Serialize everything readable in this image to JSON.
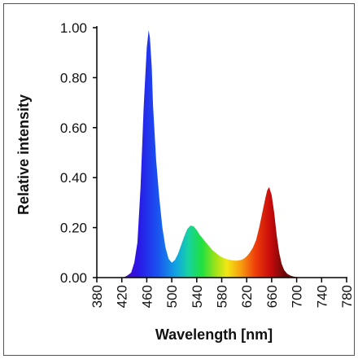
{
  "chart_data": {
    "type": "area",
    "title": "",
    "xlabel": "Wavelength [nm]",
    "ylabel": "Relative intensity",
    "xlim": [
      380,
      780
    ],
    "ylim": [
      0,
      1.0
    ],
    "x_ticks": [
      380,
      420,
      460,
      500,
      540,
      580,
      620,
      660,
      700,
      740,
      780
    ],
    "x_tick_labels": [
      "380",
      "420",
      "460",
      "500",
      "540",
      "580",
      "620",
      "660",
      "700",
      "740",
      "780"
    ],
    "y_ticks": [
      0,
      0.2,
      0.4,
      0.6,
      0.8,
      1.0
    ],
    "y_tick_labels": [
      "0.00",
      "0.20",
      "0.40",
      "0.60",
      "0.80",
      "1.00"
    ],
    "fill": "visible-spectrum gradient",
    "grid": false,
    "legend": "none",
    "series": [
      {
        "x": [
          420,
          425,
          430,
          435,
          440,
          445,
          450,
          455,
          460,
          463,
          465,
          468,
          470,
          475,
          480,
          485,
          490,
          495,
          500,
          505,
          510,
          515,
          520,
          525,
          530,
          535,
          540,
          545,
          550,
          555,
          560,
          565,
          570,
          575,
          580,
          585,
          590,
          595,
          600,
          605,
          610,
          615,
          620,
          625,
          630,
          635,
          640,
          645,
          650,
          653,
          656,
          660,
          664,
          668,
          672,
          676,
          680,
          685,
          690,
          695,
          700,
          710
        ],
        "y": [
          0.0,
          0.003,
          0.01,
          0.02,
          0.06,
          0.14,
          0.36,
          0.68,
          0.92,
          0.99,
          0.96,
          0.84,
          0.69,
          0.47,
          0.32,
          0.2,
          0.12,
          0.075,
          0.06,
          0.07,
          0.095,
          0.13,
          0.165,
          0.195,
          0.208,
          0.205,
          0.19,
          0.17,
          0.155,
          0.14,
          0.125,
          0.11,
          0.1,
          0.09,
          0.082,
          0.077,
          0.073,
          0.07,
          0.068,
          0.068,
          0.07,
          0.075,
          0.085,
          0.1,
          0.12,
          0.15,
          0.2,
          0.26,
          0.32,
          0.35,
          0.362,
          0.33,
          0.26,
          0.17,
          0.1,
          0.055,
          0.03,
          0.015,
          0.008,
          0.004,
          0.002,
          0.0
        ]
      }
    ]
  }
}
